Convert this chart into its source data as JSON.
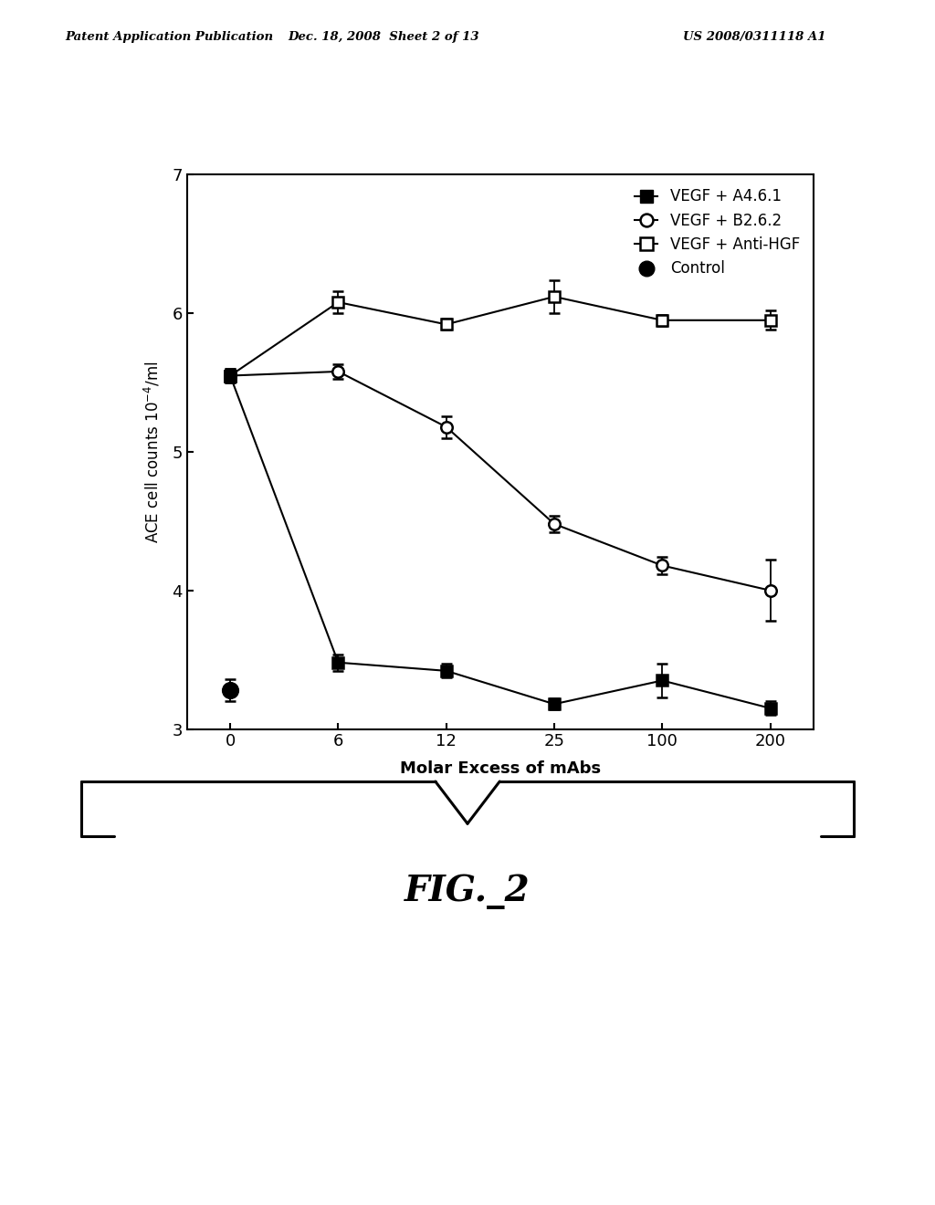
{
  "x_positions": [
    0,
    1,
    2,
    3,
    4,
    5
  ],
  "x_tick_labels": [
    "0",
    "6",
    "12",
    "25",
    "100",
    "200"
  ],
  "x_label": "Molar Excess of mAbs",
  "y_lim": [
    3.0,
    7.0
  ],
  "y_ticks": [
    3,
    4,
    5,
    6,
    7
  ],
  "series": {
    "A461": {
      "label": "VEGF + A4.6.1",
      "x": [
        0,
        1,
        2,
        3,
        4,
        5
      ],
      "y": [
        5.55,
        3.48,
        3.42,
        3.18,
        3.35,
        3.15
      ],
      "yerr": [
        0.05,
        0.06,
        0.05,
        0.04,
        0.12,
        0.05
      ]
    },
    "B262": {
      "label": "VEGF + B2.6.2",
      "x": [
        0,
        1,
        2,
        3,
        4,
        5
      ],
      "y": [
        5.55,
        5.58,
        5.18,
        4.48,
        4.18,
        4.0
      ],
      "yerr": [
        0.05,
        0.05,
        0.08,
        0.06,
        0.06,
        0.22
      ]
    },
    "AntiHGF": {
      "label": "VEGF + Anti-HGF",
      "x": [
        0,
        1,
        2,
        3,
        4,
        5
      ],
      "y": [
        5.55,
        6.08,
        5.92,
        6.12,
        5.95,
        5.95
      ],
      "yerr": [
        0.04,
        0.08,
        0.04,
        0.12,
        0.04,
        0.07
      ]
    },
    "Control": {
      "label": "Control",
      "x": [
        0
      ],
      "y": [
        3.28
      ],
      "yerr": [
        0.08
      ]
    }
  },
  "header_left": "Patent Application Publication",
  "header_mid": "Dec. 18, 2008  Sheet 2 of 13",
  "header_right": "US 2008/0311118 A1",
  "fig_label": "FIG._2",
  "background_color": "#ffffff"
}
